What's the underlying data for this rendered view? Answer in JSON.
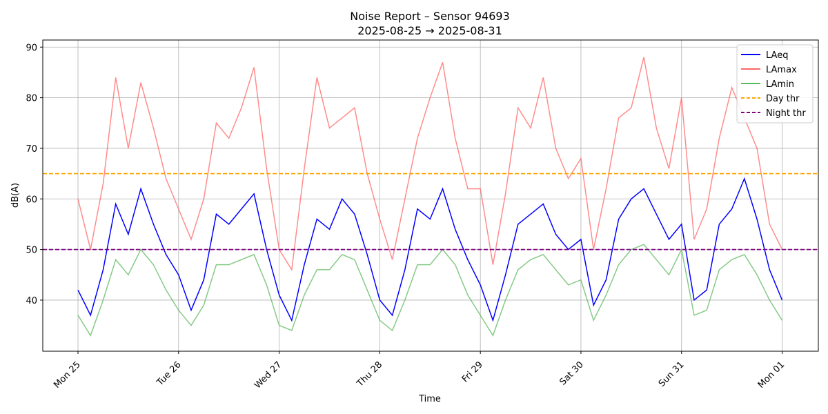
{
  "chart_data": {
    "type": "line",
    "title": "Noise Report – Sensor 94693",
    "subtitle": "2025-08-25 → 2025-08-31",
    "x_label": "Time",
    "y_label": "dB(A)",
    "x": [
      0,
      0.125,
      0.25,
      0.375,
      0.5,
      0.625,
      0.75,
      0.875,
      1,
      1.125,
      1.25,
      1.375,
      1.5,
      1.625,
      1.75,
      1.875,
      2,
      2.125,
      2.25,
      2.375,
      2.5,
      2.625,
      2.75,
      2.875,
      3,
      3.125,
      3.25,
      3.375,
      3.5,
      3.625,
      3.75,
      3.875,
      4,
      4.125,
      4.25,
      4.375,
      4.5,
      4.625,
      4.75,
      4.875,
      5,
      5.125,
      5.25,
      5.375,
      5.5,
      5.625,
      5.75,
      5.875,
      6,
      6.125,
      6.25,
      6.375,
      6.5,
      6.625,
      6.75,
      6.875,
      7
    ],
    "series": [
      {
        "name": "LAeq",
        "color": "#0000ff",
        "values": [
          42,
          37,
          46,
          59,
          53,
          62,
          55,
          49,
          45,
          38,
          44,
          57,
          55,
          58,
          61,
          50,
          41,
          36,
          47,
          56,
          54,
          60,
          57,
          49,
          40,
          37,
          46,
          58,
          56,
          62,
          54,
          48,
          43,
          36,
          45,
          55,
          57,
          59,
          53,
          50,
          52,
          39,
          44,
          56,
          60,
          62,
          57,
          52,
          55,
          40,
          42,
          55,
          58,
          64,
          56,
          46,
          40
        ]
      },
      {
        "name": "LAmax",
        "color": "#ff6666",
        "values": [
          60,
          50,
          63,
          84,
          70,
          83,
          74,
          64,
          58,
          52,
          60,
          75,
          72,
          78,
          86,
          66,
          50,
          46,
          66,
          84,
          74,
          76,
          78,
          65,
          56,
          48,
          60,
          72,
          80,
          87,
          72,
          62,
          62,
          47,
          61,
          78,
          74,
          84,
          70,
          64,
          68,
          50,
          62,
          76,
          78,
          88,
          74,
          66,
          80,
          52,
          58,
          72,
          82,
          76,
          70,
          55,
          50
        ]
      },
      {
        "name": "LAmin",
        "color": "#5cb85c",
        "values": [
          37,
          33,
          40,
          48,
          45,
          50,
          47,
          42,
          38,
          35,
          39,
          47,
          47,
          48,
          49,
          43,
          35,
          34,
          41,
          46,
          46,
          49,
          48,
          42,
          36,
          34,
          40,
          47,
          47,
          50,
          47,
          41,
          37,
          33,
          40,
          46,
          48,
          49,
          46,
          43,
          44,
          36,
          41,
          47,
          50,
          51,
          48,
          45,
          50,
          37,
          38,
          46,
          48,
          49,
          45,
          40,
          36
        ]
      }
    ],
    "hlines": [
      {
        "name": "Day thr",
        "value": 65,
        "color": "#ffa500"
      },
      {
        "name": "Night thr",
        "value": 50,
        "color": "#800080"
      }
    ],
    "xlim": [
      -0.35,
      7.36
    ],
    "ylim": [
      29.9,
      91.4
    ],
    "xticks": [
      {
        "value": 0,
        "label": "Mon 25"
      },
      {
        "value": 1,
        "label": "Tue 26"
      },
      {
        "value": 2,
        "label": "Wed 27"
      },
      {
        "value": 3,
        "label": "Thu 28"
      },
      {
        "value": 4,
        "label": "Fri 29"
      },
      {
        "value": 5,
        "label": "Sat 30"
      },
      {
        "value": 6,
        "label": "Sun 31"
      },
      {
        "value": 7,
        "label": "Mon 01"
      }
    ],
    "yticks": [
      40,
      50,
      60,
      70,
      80,
      90
    ],
    "grid": true,
    "legend": "upper right"
  }
}
